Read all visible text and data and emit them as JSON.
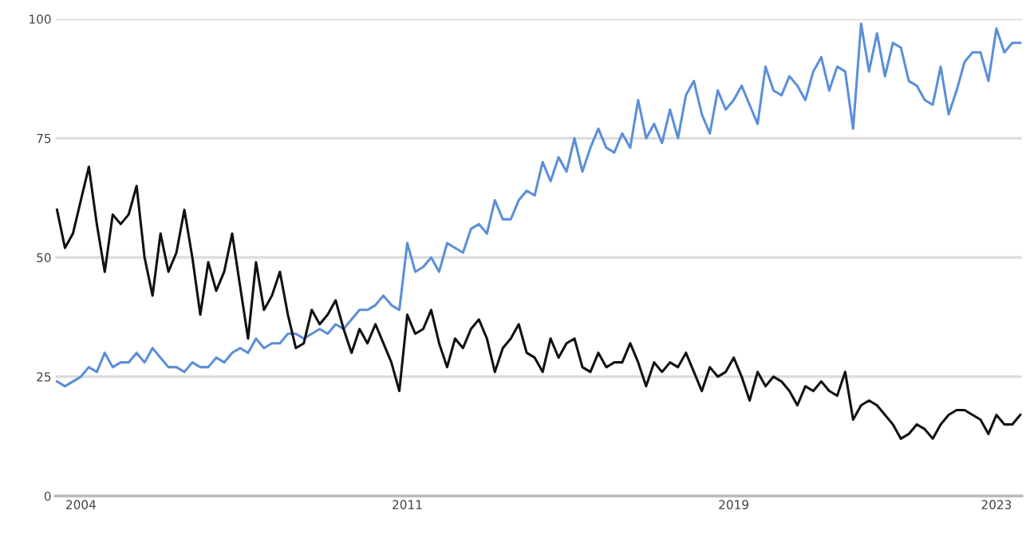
{
  "chart_data": {
    "type": "line",
    "categories": [
      null,
      null,
      null,
      "2004",
      null,
      null,
      null,
      null,
      null,
      null,
      null,
      null,
      null,
      null,
      null,
      null,
      null,
      null,
      null,
      null,
      null,
      null,
      null,
      null,
      null,
      null,
      null,
      null,
      null,
      null,
      null,
      null,
      null,
      null,
      null,
      null,
      null,
      null,
      null,
      null,
      null,
      null,
      null,
      null,
      "2011",
      null,
      null,
      null,
      null,
      null,
      null,
      null,
      null,
      null,
      null,
      null,
      null,
      null,
      null,
      null,
      null,
      null,
      null,
      null,
      null,
      null,
      null,
      null,
      null,
      null,
      null,
      null,
      null,
      null,
      null,
      null,
      null,
      null,
      null,
      null,
      null,
      null,
      null,
      null,
      null,
      "2019",
      null,
      null,
      null,
      null,
      null,
      null,
      null,
      null,
      null,
      null,
      null,
      null,
      null,
      null,
      null,
      null,
      null,
      null,
      null,
      null,
      null,
      null,
      null,
      null,
      null,
      null,
      null,
      null,
      null,
      null,
      null,
      null,
      "2023",
      null,
      null,
      null
    ],
    "series": [
      {
        "color": "#5b8fd9",
        "values": [
          24,
          23,
          24,
          25,
          27,
          26,
          30,
          27,
          28,
          28,
          30,
          28,
          31,
          29,
          27,
          27,
          26,
          28,
          27,
          27,
          29,
          28,
          30,
          31,
          30,
          33,
          31,
          32,
          32,
          34,
          34,
          33,
          34,
          35,
          34,
          36,
          35,
          37,
          39,
          39,
          40,
          42,
          40,
          39,
          53,
          47,
          48,
          50,
          47,
          53,
          52,
          51,
          56,
          57,
          55,
          62,
          58,
          58,
          62,
          64,
          63,
          70,
          66,
          71,
          68,
          75,
          68,
          73,
          77,
          73,
          72,
          76,
          73,
          83,
          75,
          78,
          74,
          81,
          75,
          84,
          87,
          80,
          76,
          85,
          81,
          83,
          86,
          82,
          78,
          90,
          85,
          84,
          88,
          86,
          83,
          89,
          92,
          85,
          90,
          89,
          77,
          99,
          89,
          97,
          88,
          95,
          94,
          87,
          86,
          83,
          82,
          90,
          80,
          85,
          91,
          93,
          93,
          87,
          98,
          93,
          95,
          95
        ]
      },
      {
        "color": "#111111",
        "values": [
          60,
          52,
          55,
          62,
          69,
          57,
          47,
          59,
          57,
          59,
          65,
          50,
          42,
          55,
          47,
          51,
          60,
          50,
          38,
          49,
          43,
          47,
          55,
          44,
          33,
          49,
          39,
          42,
          47,
          38,
          31,
          32,
          39,
          36,
          38,
          41,
          35,
          30,
          35,
          32,
          36,
          32,
          28,
          22,
          38,
          34,
          35,
          39,
          32,
          27,
          33,
          31,
          35,
          37,
          33,
          26,
          31,
          33,
          36,
          30,
          29,
          26,
          33,
          29,
          32,
          33,
          27,
          26,
          30,
          27,
          28,
          28,
          32,
          28,
          23,
          28,
          26,
          28,
          27,
          30,
          26,
          22,
          27,
          25,
          26,
          29,
          25,
          20,
          26,
          23,
          25,
          24,
          22,
          19,
          23,
          22,
          24,
          22,
          21,
          26,
          16,
          19,
          20,
          19,
          17,
          15,
          12,
          13,
          15,
          14,
          12,
          15,
          17,
          18,
          18,
          17,
          16,
          13,
          17,
          15,
          15,
          17
        ]
      }
    ],
    "ylim": [
      0,
      100
    ],
    "yticks": [
      0,
      25,
      50,
      75,
      100
    ],
    "grid": "y"
  }
}
